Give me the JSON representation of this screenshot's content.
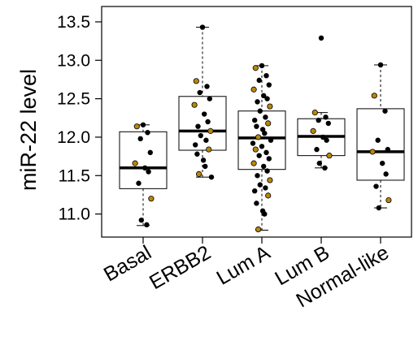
{
  "chart_data": {
    "type": "box",
    "title": "",
    "xlabel": "",
    "ylabel": "miR-22 level",
    "ylim": [
      10.7,
      13.7
    ],
    "yticks": [
      11.0,
      11.5,
      12.0,
      12.5,
      13.0,
      13.5
    ],
    "ytick_labels": [
      "11.0",
      "11.5",
      "12.0",
      "12.5",
      "13.0",
      "13.5"
    ],
    "grid": false,
    "legend": "none",
    "colors": {
      "box": "#000000",
      "point": "#000000",
      "point_highlight": "#b8860b"
    },
    "categories": [
      "Basal",
      "ERBB2",
      "Lum A",
      "Lum B",
      "Normal-like"
    ],
    "boxes": [
      {
        "category": "Basal",
        "whisker_low": 10.85,
        "q1": 11.33,
        "median": 11.6,
        "q3": 12.07,
        "whisker_high": 12.16,
        "points": [
          12.16,
          12.14,
          12.06,
          11.98,
          11.8,
          11.66,
          11.6,
          11.55,
          11.4,
          11.2,
          10.92,
          10.86
        ]
      },
      {
        "category": "ERBB2",
        "whisker_low": 11.48,
        "q1": 11.83,
        "median": 12.08,
        "q3": 12.53,
        "whisker_high": 13.43,
        "points": [
          13.43,
          12.73,
          12.66,
          12.58,
          12.5,
          12.42,
          12.3,
          12.2,
          12.14,
          12.08,
          12.02,
          11.96,
          11.9,
          11.84,
          11.78,
          11.7,
          11.62,
          11.52,
          11.48
        ]
      },
      {
        "category": "Lum A",
        "whisker_low": 10.79,
        "q1": 11.58,
        "median": 11.99,
        "q3": 12.34,
        "whisker_high": 12.93,
        "points": [
          12.93,
          12.9,
          12.8,
          12.74,
          12.68,
          12.62,
          12.54,
          12.5,
          12.46,
          12.4,
          12.34,
          12.26,
          12.22,
          12.18,
          12.14,
          12.1,
          12.05,
          12.0,
          11.96,
          11.92,
          11.88,
          11.84,
          11.8,
          11.76,
          11.72,
          11.66,
          11.62,
          11.56,
          11.5,
          11.44,
          11.38,
          11.34,
          11.3,
          11.24,
          11.14,
          11.04,
          11.0,
          10.8
        ]
      },
      {
        "category": "Lum B",
        "whisker_low": 11.6,
        "q1": 11.76,
        "median": 12.01,
        "q3": 12.24,
        "whisker_high": 12.32,
        "points": [
          13.29,
          12.32,
          12.26,
          12.22,
          12.18,
          12.08,
          12.0,
          11.96,
          11.84,
          11.76,
          11.66,
          11.6
        ]
      },
      {
        "category": "Normal-like",
        "whisker_low": 11.08,
        "q1": 11.44,
        "median": 11.81,
        "q3": 12.37,
        "whisker_high": 12.94,
        "points": [
          12.94,
          12.54,
          12.34,
          11.96,
          11.84,
          11.81,
          11.66,
          11.52,
          11.36,
          11.18,
          11.08
        ]
      }
    ]
  }
}
